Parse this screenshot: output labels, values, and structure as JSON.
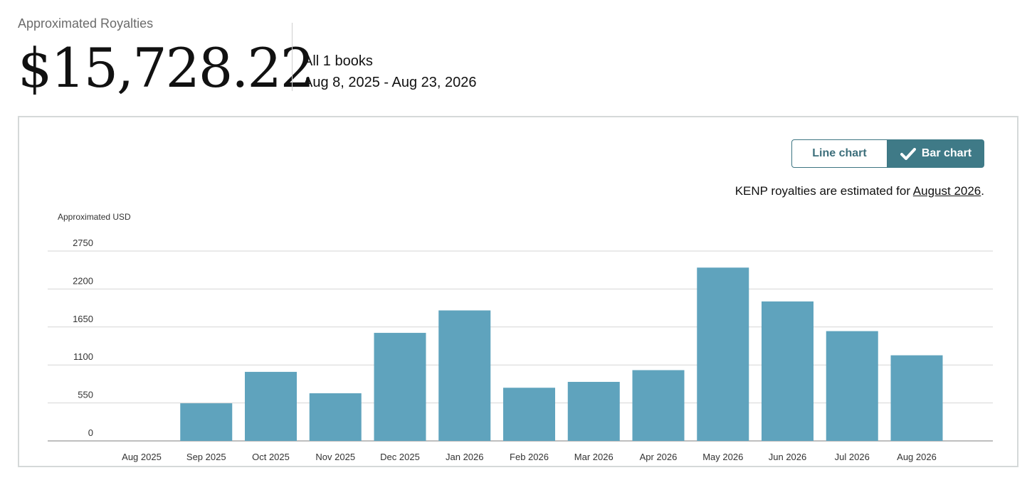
{
  "summary": {
    "label": "Approximated Royalties",
    "amount": "$15,728.22",
    "books": "All 1 books",
    "date_range": "Aug 8, 2025 - Aug 23, 2026"
  },
  "toggle": {
    "line_label": "Line chart",
    "bar_label": "Bar chart",
    "selected": "bar"
  },
  "note": {
    "prefix": "KENP royalties are estimated for ",
    "link": "August 2026",
    "suffix": "."
  },
  "colors": {
    "bar": "#5fa3bd",
    "accent": "#3f7a87",
    "grid": "#d6d6d6"
  },
  "chart_data": {
    "type": "bar",
    "ylabel": "Approximated USD",
    "xlabel": "",
    "ylim": [
      0,
      2750
    ],
    "yticks": [
      0,
      550,
      1100,
      1650,
      2200,
      2750
    ],
    "grid": true,
    "categories": [
      "Aug 2025",
      "Sep 2025",
      "Oct 2025",
      "Nov 2025",
      "Dec 2025",
      "Jan 2026",
      "Feb 2026",
      "Mar 2026",
      "Apr 2026",
      "May 2026",
      "Jun 2026",
      "Jul 2026",
      "Aug 2026"
    ],
    "values": [
      0,
      545,
      1000,
      690,
      1565,
      1890,
      770,
      855,
      1025,
      2510,
      2020,
      1590,
      1240
    ]
  }
}
